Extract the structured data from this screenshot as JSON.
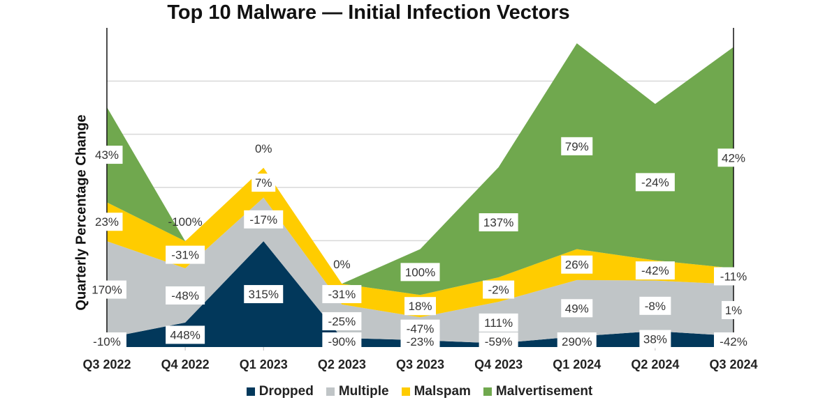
{
  "chart_data": {
    "type": "area",
    "stacked": true,
    "title": "Top 10 Malware — Initial Infection Vectors",
    "xlabel": "",
    "ylabel": "Quarterly Percentage Change",
    "y_tick_labels_shown": false,
    "ylim": [
      0,
      6
    ],
    "grid": true,
    "legend": "bottom",
    "categories": [
      "Q3 2022",
      "Q4 2022",
      "Q1 2023",
      "Q2 2023",
      "Q3 2023",
      "Q4 2023",
      "Q1 2024",
      "Q2 2024",
      "Q3 2024"
    ],
    "series": [
      {
        "name": "Dropped",
        "color": "#02385b",
        "values": [
          0.17,
          0.46,
          1.99,
          0.17,
          0.13,
          0.07,
          0.2,
          0.3,
          0.21
        ],
        "labels": [
          "-10%",
          "448%",
          "315%",
          "-90%",
          "-23%",
          "-59%",
          "290%",
          "38%",
          "-42%"
        ]
      },
      {
        "name": "Multiple",
        "color": "#c0c5c7",
        "values": [
          1.82,
          1.02,
          0.82,
          0.63,
          0.43,
          0.78,
          1.06,
          0.95,
          0.97
        ],
        "labels": [
          "170%",
          "-48%",
          "-17%",
          "-25%",
          "-47%",
          "111%",
          "49%",
          "-8%",
          "1%"
        ]
      },
      {
        "name": "Malspam",
        "color": "#ffcc00",
        "values": [
          0.73,
          0.51,
          0.56,
          0.39,
          0.42,
          0.46,
          0.58,
          0.38,
          0.3
        ],
        "labels": [
          "23%",
          "-31%",
          "7%",
          "-31%",
          "18%",
          "-2%",
          "26%",
          "-42%",
          "-11%"
        ]
      },
      {
        "name": "Malvertisement",
        "color": "#70a84e",
        "values": [
          1.79,
          0,
          0,
          0,
          0.86,
          2.07,
          3.87,
          2.94,
          4.16
        ],
        "labels": [
          "43%",
          "-100%",
          "0%",
          "0%",
          "100%",
          "137%",
          "79%",
          "-24%",
          "42%"
        ]
      }
    ]
  }
}
